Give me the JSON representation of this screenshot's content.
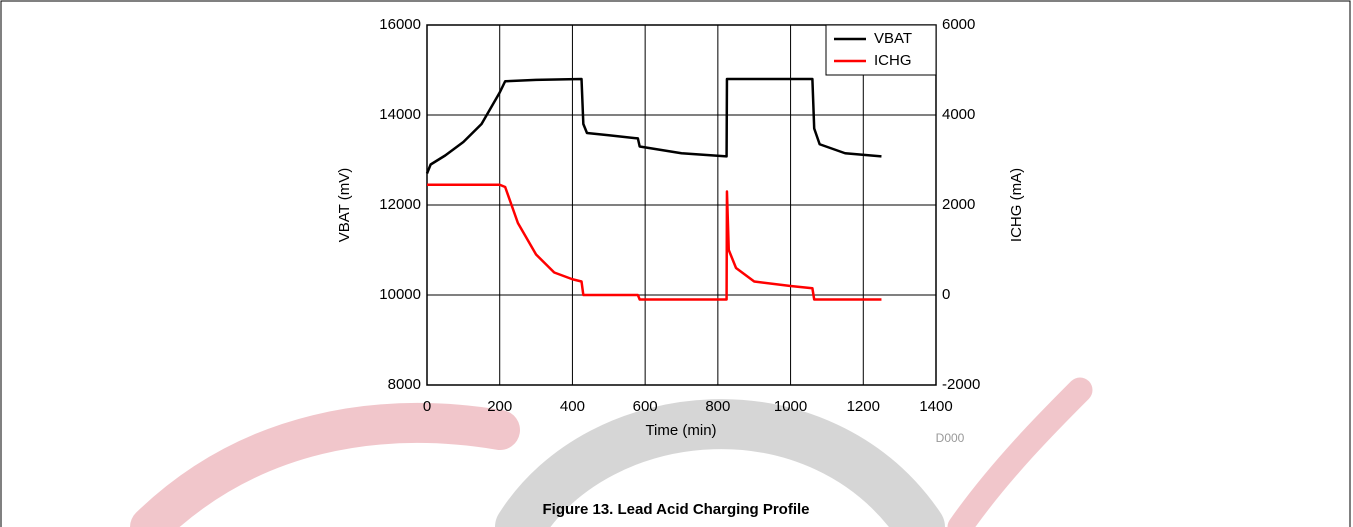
{
  "chart_data": {
    "type": "line",
    "title": "Figure 13. Lead Acid Charging Profile",
    "x_label": "Time (min)",
    "y_label": "VBAT (mV)",
    "y2_label": "ICHG (mA)",
    "annotation": "D000",
    "xlim": [
      0,
      1400
    ],
    "xticks": [
      0,
      200,
      400,
      600,
      800,
      1000,
      1200,
      1400
    ],
    "ylim": [
      8000,
      16000
    ],
    "yticks": [
      8000,
      10000,
      12000,
      14000,
      16000
    ],
    "y2lim": [
      -2000,
      6000
    ],
    "y2ticks": [
      -2000,
      0,
      2000,
      4000,
      6000
    ],
    "grid": true,
    "legend": "upper right",
    "series": [
      {
        "name": "VBAT",
        "color": "#000000",
        "x": [
          0,
          10,
          50,
          100,
          150,
          200,
          215,
          300,
          425,
          430,
          440,
          500,
          580,
          585,
          700,
          824,
          825,
          1060,
          1065,
          1080,
          1150,
          1250
        ],
        "values": [
          12700,
          12900,
          13100,
          13400,
          13800,
          14500,
          14750,
          14780,
          14800,
          13800,
          13600,
          13550,
          13480,
          13300,
          13150,
          13080,
          14800,
          14800,
          13700,
          13350,
          13150,
          13080
        ]
      },
      {
        "name": "ICHG",
        "color": "#ff0000",
        "axis": "y2",
        "x": [
          0,
          200,
          215,
          250,
          300,
          350,
          400,
          425,
          430,
          580,
          585,
          824,
          825,
          830,
          850,
          900,
          1000,
          1060,
          1065,
          1250
        ],
        "values": [
          2450,
          2450,
          2400,
          1600,
          900,
          500,
          350,
          300,
          0,
          0,
          -100,
          -100,
          2300,
          1000,
          600,
          300,
          200,
          150,
          -100,
          -100
        ]
      }
    ]
  }
}
